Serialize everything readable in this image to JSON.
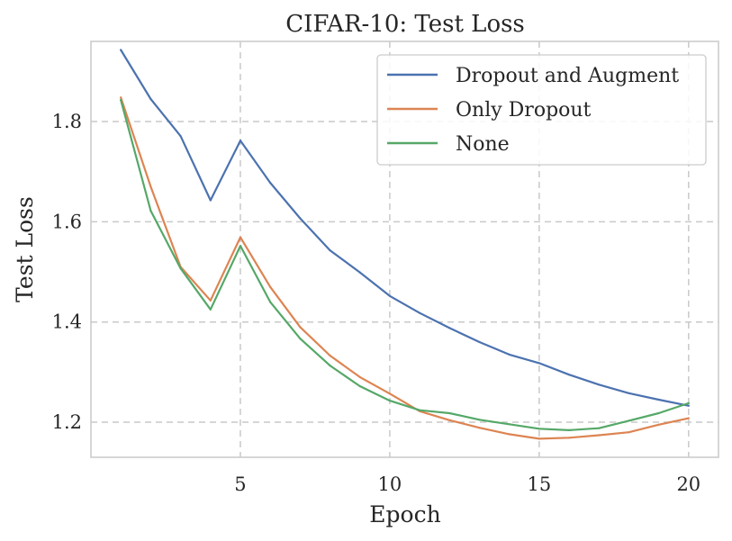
{
  "chart_data": {
    "type": "line",
    "title": "CIFAR-10: Test Loss",
    "xlabel": "Epoch",
    "ylabel": "Test Loss",
    "xlim": [
      0,
      21
    ],
    "ylim": [
      1.13,
      1.96
    ],
    "xticks": [
      5,
      10,
      15,
      20
    ],
    "yticks": [
      1.2,
      1.4,
      1.6,
      1.8
    ],
    "grid": true,
    "legend_position": "top-right",
    "x": [
      1,
      2,
      3,
      4,
      5,
      6,
      7,
      8,
      9,
      10,
      11,
      12,
      13,
      14,
      15,
      16,
      17,
      18,
      19,
      20
    ],
    "series": [
      {
        "name": "Dropout and Augment",
        "color": "#4c72b0",
        "values": [
          1.943,
          1.845,
          1.771,
          1.643,
          1.762,
          1.678,
          1.607,
          1.543,
          1.499,
          1.452,
          1.418,
          1.388,
          1.36,
          1.335,
          1.318,
          1.295,
          1.275,
          1.258,
          1.245,
          1.233
        ]
      },
      {
        "name": "Only Dropout",
        "color": "#dd8452",
        "values": [
          1.848,
          1.67,
          1.51,
          1.443,
          1.569,
          1.47,
          1.39,
          1.333,
          1.29,
          1.257,
          1.222,
          1.204,
          1.189,
          1.176,
          1.167,
          1.169,
          1.174,
          1.18,
          1.195,
          1.208
        ]
      },
      {
        "name": "None",
        "color": "#55a868",
        "values": [
          1.843,
          1.622,
          1.507,
          1.425,
          1.552,
          1.44,
          1.367,
          1.313,
          1.272,
          1.243,
          1.224,
          1.218,
          1.205,
          1.196,
          1.187,
          1.184,
          1.188,
          1.203,
          1.218,
          1.238
        ]
      }
    ]
  }
}
